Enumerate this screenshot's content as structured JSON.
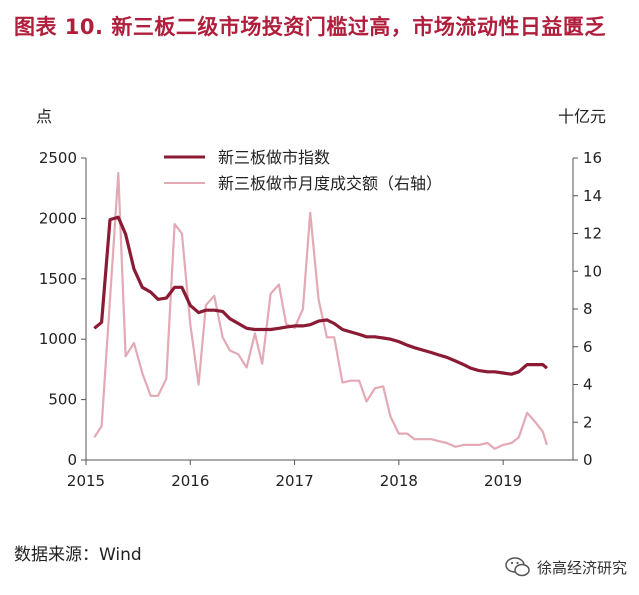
{
  "title": "图表 10.  新三板二级市场投资门槛过高，市场流动性日益匮乏",
  "source": "数据来源：Wind",
  "watermark": "徐高经济研究",
  "watermark_icon": "wechat-icon",
  "colors": {
    "title": "#b01e3c",
    "index_line": "#8b1a34",
    "volume_line": "#e3a9b4"
  },
  "chart_data": {
    "type": "line",
    "title": "",
    "left_unit": "点",
    "right_unit": "十亿元",
    "x_ticks": [
      "2015",
      "2016",
      "2017",
      "2018",
      "2019"
    ],
    "x_range": [
      2015,
      2019.67
    ],
    "y_left_ticks": [
      "0",
      "500",
      "1000",
      "1500",
      "2000",
      "2500"
    ],
    "y_left_range": [
      0,
      2500
    ],
    "y_right_ticks": [
      "0",
      "2",
      "4",
      "6",
      "8",
      "10",
      "12",
      "14",
      "16"
    ],
    "y_right_range": [
      0,
      16
    ],
    "legend_position": "top-center",
    "series": [
      {
        "name": "新三板做市指数",
        "axis": "left",
        "x": [
          2015.08,
          2015.15,
          2015.23,
          2015.31,
          2015.38,
          2015.46,
          2015.54,
          2015.62,
          2015.69,
          2015.77,
          2015.85,
          2015.92,
          2016.0,
          2016.08,
          2016.15,
          2016.23,
          2016.31,
          2016.38,
          2016.46,
          2016.54,
          2016.62,
          2016.69,
          2016.77,
          2016.85,
          2016.92,
          2017.0,
          2017.08,
          2017.15,
          2017.23,
          2017.31,
          2017.38,
          2017.46,
          2017.54,
          2017.62,
          2017.69,
          2017.77,
          2017.85,
          2017.92,
          2018.0,
          2018.08,
          2018.15,
          2018.23,
          2018.31,
          2018.38,
          2018.46,
          2018.54,
          2018.62,
          2018.69,
          2018.77,
          2018.85,
          2018.92,
          2019.0,
          2019.08,
          2019.15,
          2019.23,
          2019.31,
          2019.38,
          2019.42
        ],
        "values": [
          1090,
          1140,
          1990,
          2010,
          1870,
          1580,
          1430,
          1390,
          1330,
          1340,
          1430,
          1430,
          1280,
          1220,
          1240,
          1240,
          1230,
          1170,
          1130,
          1090,
          1080,
          1080,
          1080,
          1090,
          1100,
          1110,
          1110,
          1120,
          1150,
          1160,
          1130,
          1080,
          1060,
          1040,
          1020,
          1020,
          1010,
          1000,
          980,
          950,
          930,
          910,
          890,
          870,
          850,
          820,
          790,
          760,
          740,
          730,
          730,
          720,
          710,
          730,
          790,
          790,
          790,
          760
        ]
      },
      {
        "name": "新三板做市月度成交额（右轴）",
        "axis": "right",
        "x": [
          2015.08,
          2015.15,
          2015.23,
          2015.31,
          2015.38,
          2015.46,
          2015.54,
          2015.62,
          2015.69,
          2015.77,
          2015.85,
          2015.92,
          2016.0,
          2016.08,
          2016.15,
          2016.23,
          2016.31,
          2016.38,
          2016.46,
          2016.54,
          2016.62,
          2016.69,
          2016.77,
          2016.85,
          2016.92,
          2017.0,
          2017.08,
          2017.15,
          2017.23,
          2017.31,
          2017.38,
          2017.46,
          2017.54,
          2017.62,
          2017.69,
          2017.77,
          2017.85,
          2017.92,
          2018.0,
          2018.08,
          2018.15,
          2018.23,
          2018.31,
          2018.38,
          2018.46,
          2018.54,
          2018.62,
          2018.69,
          2018.77,
          2018.85,
          2018.92,
          2019.0,
          2019.08,
          2019.15,
          2019.23,
          2019.31,
          2019.38,
          2019.42
        ],
        "values": [
          1.2,
          1.8,
          8.5,
          15.2,
          5.5,
          6.2,
          4.6,
          3.4,
          3.4,
          4.3,
          12.5,
          12.0,
          7.2,
          4.0,
          8.2,
          8.7,
          6.5,
          5.8,
          5.6,
          4.9,
          6.7,
          5.1,
          8.8,
          9.3,
          7.2,
          7.0,
          8.0,
          13.1,
          8.5,
          6.5,
          6.5,
          4.1,
          4.2,
          4.2,
          3.1,
          3.8,
          3.9,
          2.3,
          1.4,
          1.4,
          1.1,
          1.1,
          1.1,
          1.0,
          0.9,
          0.7,
          0.8,
          0.8,
          0.8,
          0.9,
          0.6,
          0.8,
          0.9,
          1.2,
          2.5,
          2.0,
          1.5,
          0.8
        ]
      }
    ]
  }
}
